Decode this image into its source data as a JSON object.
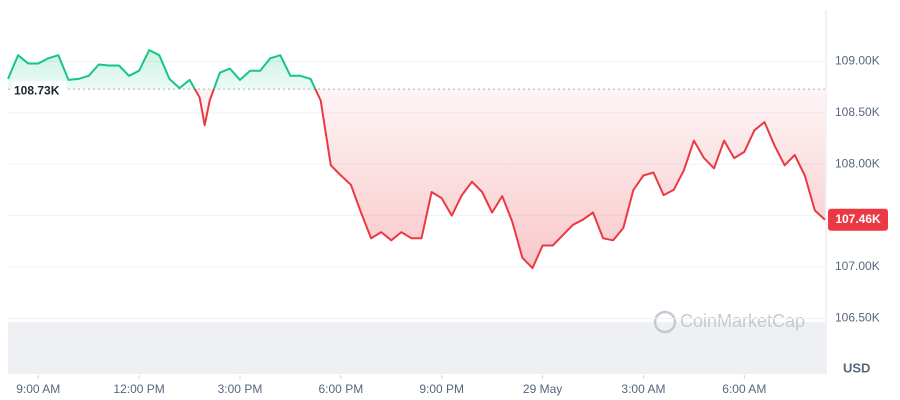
{
  "chart_data": {
    "type": "line",
    "x": [
      -0.9,
      -0.6,
      -0.3,
      0,
      0.3,
      0.6,
      0.9,
      1.2,
      1.5,
      1.8,
      2.1,
      2.4,
      2.7,
      3,
      3.3,
      3.6,
      3.9,
      4.2,
      4.5,
      4.8,
      4.95,
      5.1,
      5.4,
      5.7,
      6,
      6.3,
      6.6,
      6.9,
      7.2,
      7.5,
      7.8,
      8.1,
      8.4,
      8.7,
      9,
      9.3,
      9.6,
      9.9,
      10.2,
      10.5,
      10.8,
      11.1,
      11.4,
      11.7,
      12,
      12.3,
      12.6,
      12.9,
      13.2,
      13.5,
      13.8,
      14.1,
      14.4,
      14.7,
      15,
      15.3,
      15.6,
      15.9,
      16.2,
      16.5,
      16.8,
      17.1,
      17.4,
      17.7,
      18,
      18.3,
      18.6,
      18.9,
      19.2,
      19.5,
      19.8,
      20.1,
      20.4,
      20.7,
      21,
      21.3,
      21.6,
      21.9,
      22.2,
      22.5,
      22.8,
      23.1,
      23.4
    ],
    "values": [
      108.83,
      109.06,
      108.98,
      108.98,
      109.03,
      109.06,
      108.82,
      108.83,
      108.86,
      108.97,
      108.96,
      108.96,
      108.86,
      108.91,
      109.11,
      109.06,
      108.83,
      108.74,
      108.82,
      108.65,
      108.38,
      108.62,
      108.89,
      108.93,
      108.82,
      108.91,
      108.91,
      109.03,
      109.06,
      108.86,
      108.86,
      108.83,
      108.62,
      107.99,
      107.89,
      107.8,
      107.53,
      107.28,
      107.34,
      107.26,
      107.34,
      107.28,
      107.28,
      107.73,
      107.67,
      107.5,
      107.7,
      107.83,
      107.73,
      107.53,
      107.69,
      107.44,
      107.09,
      106.99,
      107.21,
      107.21,
      107.31,
      107.41,
      107.46,
      107.53,
      107.28,
      107.26,
      107.38,
      107.75,
      107.89,
      107.92,
      107.7,
      107.75,
      107.94,
      108.23,
      108.06,
      107.96,
      108.23,
      108.06,
      108.12,
      108.33,
      108.41,
      108.18,
      107.99,
      108.09,
      107.89,
      107.55,
      107.46
    ],
    "up_color": "#16c784",
    "down_color": "#ea3943",
    "reference_line": {
      "value": 108.73,
      "label": "108.73K"
    },
    "current_price": {
      "value": 107.46,
      "label": "107.46K"
    },
    "xlim": [
      -0.9,
      23.4
    ],
    "xticks": [
      {
        "value": 0,
        "label": "9:00 AM"
      },
      {
        "value": 3,
        "label": "12:00 PM"
      },
      {
        "value": 6,
        "label": "3:00 PM"
      },
      {
        "value": 9,
        "label": "6:00 PM"
      },
      {
        "value": 12,
        "label": "9:00 PM"
      },
      {
        "value": 15,
        "label": "29 May"
      },
      {
        "value": 18,
        "label": "3:00 AM"
      },
      {
        "value": 21,
        "label": "6:00 AM"
      }
    ],
    "ylim": [
      105.95,
      109.5
    ],
    "yticks": [
      {
        "value": 106.5,
        "label": "106.50K"
      },
      {
        "value": 107,
        "label": "107.00K"
      },
      {
        "value": 107.5,
        "label": "107.50K"
      },
      {
        "value": 108,
        "label": "108.00K"
      },
      {
        "value": 108.5,
        "label": "108.50K"
      },
      {
        "value": 109,
        "label": "109.00K"
      }
    ],
    "y_unit": "USD",
    "watermark": "CoinMarketCap",
    "grid": true
  }
}
